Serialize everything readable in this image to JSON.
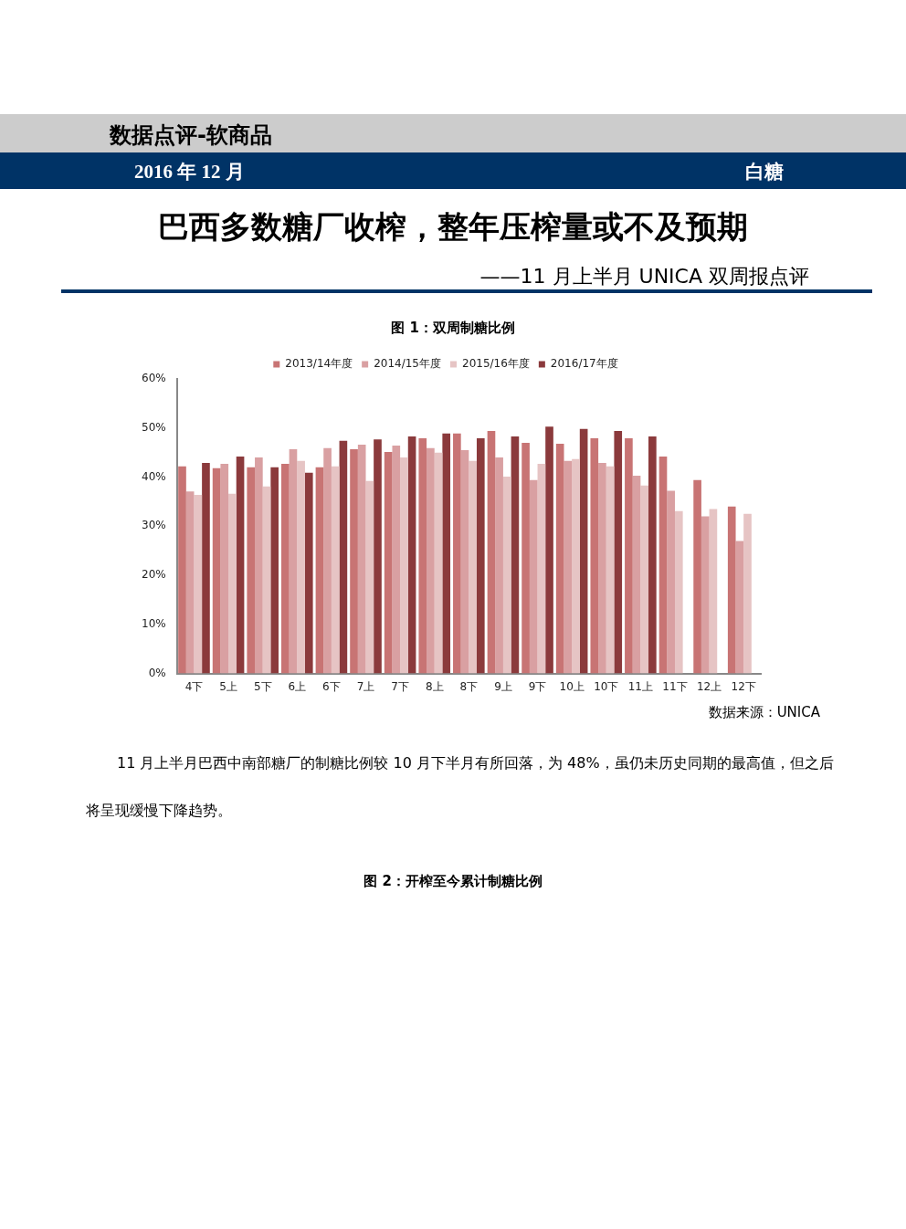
{
  "chart_data": {
    "type": "bar",
    "title": "图 1：双周制糖比例",
    "categories": [
      "4下",
      "5上",
      "5下",
      "6上",
      "6下",
      "7上",
      "7下",
      "8上",
      "8下",
      "9上",
      "9下",
      "10上",
      "10下",
      "11上",
      "11下",
      "12上",
      "12下"
    ],
    "series": [
      {
        "name": "2013/14年度",
        "color": "#c87474",
        "values": [
          42.2,
          41.8,
          42.0,
          42.7,
          42.0,
          45.7,
          45.1,
          47.9,
          48.9,
          49.4,
          47.0,
          46.8,
          47.9,
          47.9,
          44.2,
          39.4,
          34.0
        ]
      },
      {
        "name": "2014/15年度",
        "color": "#d9a0a2",
        "values": [
          37.1,
          42.7,
          44.0,
          45.7,
          45.9,
          46.6,
          46.4,
          45.9,
          45.5,
          44.0,
          39.4,
          43.3,
          42.9,
          40.3,
          37.2,
          32.0,
          27.0
        ]
      },
      {
        "name": "2015/16年度",
        "color": "#e6c4c4",
        "values": [
          36.4,
          36.6,
          38.1,
          43.3,
          42.2,
          39.2,
          44.0,
          45.0,
          43.3,
          40.1,
          42.7,
          43.7,
          42.2,
          38.3,
          33.1,
          33.5,
          32.5
        ]
      },
      {
        "name": "2016/17年度",
        "color": "#8b3a3c",
        "values": [
          42.9,
          44.2,
          42.0,
          40.9,
          47.4,
          47.7,
          48.3,
          48.9,
          47.9,
          48.3,
          50.3,
          49.8,
          49.4,
          48.3,
          null,
          null,
          null
        ]
      }
    ],
    "ylim": [
      0,
      60
    ],
    "yticks": [
      {
        "value": 0,
        "label": "0%"
      },
      {
        "value": 10,
        "label": "10%"
      },
      {
        "value": 20,
        "label": "20%"
      },
      {
        "value": 30,
        "label": "30%"
      },
      {
        "value": 40,
        "label": "40%"
      },
      {
        "value": 50,
        "label": "50%"
      },
      {
        "value": 60,
        "label": "60%"
      }
    ],
    "grid": false,
    "legend": "top",
    "annotations": [
      "数据点评-软商品",
      "2016 年 12 月",
      "白糖",
      "巴西多数糖厂收榨，整年压榨量或不及预期",
      "——11 月上半月 UNICA 双周报点评",
      "数据来源：UNICA",
      "11 月上半月巴西中南部糖厂的制糖比例较 10 月下半月有所回落，为 48%，虽仍未历史同期的最高值，但之后将呈现缓慢下降趋势。",
      "图 2：开榨至今累计制糖比例"
    ]
  }
}
